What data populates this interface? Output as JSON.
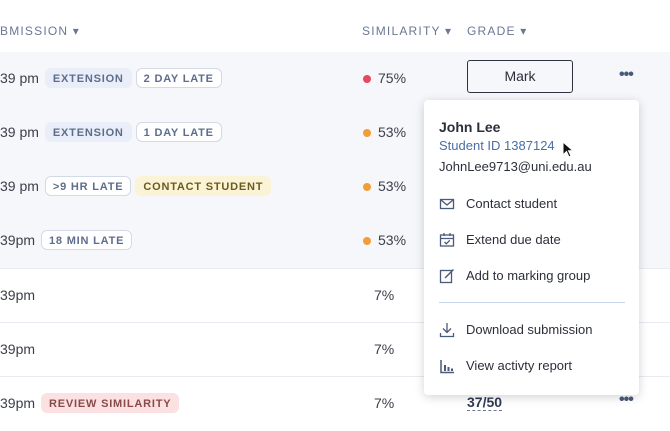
{
  "header": {
    "columns": [
      "BMISSION ▾",
      "SIMILARITY ▾",
      "GRADE ▾"
    ]
  },
  "rows": [
    {
      "time": "39 pm",
      "tags": [
        {
          "text": "EXTENSION",
          "fill": "#e9eef8"
        },
        {
          "text": "2 DAY LATE",
          "fill": "#ffffff"
        }
      ],
      "dot_color": "#e8475f",
      "similarity": "75%",
      "grade": "Mark",
      "menu": "•••"
    },
    {
      "time": "39 pm",
      "tags": [
        {
          "text": "EXTENSION",
          "fill": "#e9eef8"
        },
        {
          "text": "1 DAY LATE",
          "fill": "#ffffff"
        }
      ],
      "dot_color": "#f39c3a",
      "similarity": "53%"
    },
    {
      "time": "39 pm",
      "tags": [
        {
          "text": ">9 HR LATE",
          "fill": "#ffffff"
        },
        {
          "text": "CONTACT STUDENT",
          "fill": "#fbf3d6"
        }
      ],
      "dot_color": "#f39c3a",
      "similarity": "53%"
    },
    {
      "time": "39pm",
      "tags": [
        {
          "text": "18 MIN LATE",
          "fill": "#ffffff"
        }
      ],
      "dot_color": "#f39c3a",
      "similarity": "53%"
    },
    {
      "time": "39pm",
      "tags": [],
      "similarity": "7%"
    },
    {
      "time": "39pm",
      "tags": [],
      "similarity": "7%"
    },
    {
      "time": "39pm",
      "tags": [
        {
          "text": "REVIEW SIMILARITY",
          "fill": "#fbe1e1"
        }
      ],
      "similarity": "7%",
      "grade": "37/50",
      "menu": "•••"
    }
  ],
  "popup": {
    "name": "John Lee",
    "student_id": "Student ID 1387124",
    "email": "JohnLee9713@uni.edu.au",
    "items": [
      "Contact student",
      "Extend due date",
      "Add to marking group",
      "Download submission",
      "View activty report"
    ]
  }
}
